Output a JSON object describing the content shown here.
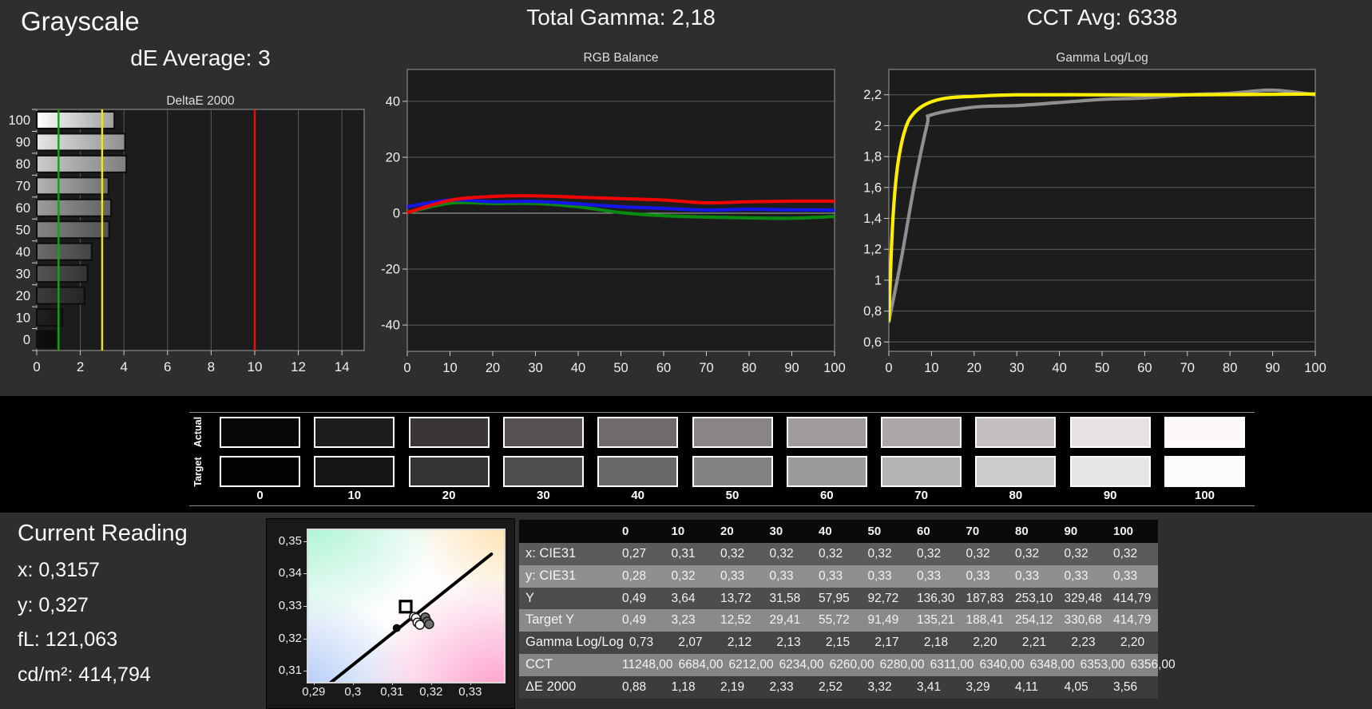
{
  "current_reading": {
    "title": "Current Reading",
    "lines": [
      "x: 0,3157",
      "y: 0,327",
      "fL: 121,063",
      "cd/m²: 414,794"
    ]
  },
  "swatches": {
    "row_labels": [
      "Actual",
      "Target"
    ],
    "levels": [
      "0",
      "10",
      "20",
      "30",
      "40",
      "50",
      "60",
      "70",
      "80",
      "90",
      "100"
    ],
    "actual_colors": [
      "#070709",
      "#1d1b1d",
      "#3a3538",
      "#575153",
      "#716a6c",
      "#8b8487",
      "#a19a9d",
      "#aea7aa",
      "#c6bfc2",
      "#e7e1e4",
      "#fdf9fa"
    ],
    "target_colors": [
      "#020202",
      "#161616",
      "#343434",
      "#4f4f4f",
      "#696969",
      "#838383",
      "#9b9b9b",
      "#b3b3b3",
      "#cccccc",
      "#e5e5e5",
      "#fbfbfb"
    ]
  },
  "table": {
    "columns": [
      "0",
      "10",
      "20",
      "30",
      "40",
      "50",
      "60",
      "70",
      "80",
      "90",
      "100"
    ],
    "rows": [
      {
        "label": "x: CIE31",
        "bg": "#5b5b5b",
        "values": [
          "0,27",
          "0,31",
          "0,32",
          "0,32",
          "0,32",
          "0,32",
          "0,32",
          "0,32",
          "0,32",
          "0,32",
          "0,32"
        ]
      },
      {
        "label": "y: CIE31",
        "bg": "#8f8f8f",
        "values": [
          "0,28",
          "0,32",
          "0,33",
          "0,33",
          "0,33",
          "0,33",
          "0,33",
          "0,33",
          "0,33",
          "0,33",
          "0,33"
        ]
      },
      {
        "label": "Y",
        "bg": "#4d4d4d",
        "values": [
          "0,49",
          "3,64",
          "13,72",
          "31,58",
          "57,95",
          "92,72",
          "136,30",
          "187,83",
          "253,10",
          "329,48",
          "414,79"
        ]
      },
      {
        "label": "Target Y",
        "bg": "#8a8a8a",
        "values": [
          "0,49",
          "3,23",
          "12,52",
          "29,41",
          "55,72",
          "91,49",
          "135,21",
          "188,41",
          "254,12",
          "330,68",
          "414,79"
        ]
      },
      {
        "label": "Gamma Log/Log",
        "bg": "#454545",
        "values": [
          "0,73",
          "2,07",
          "2,12",
          "2,13",
          "2,15",
          "2,17",
          "2,18",
          "2,20",
          "2,21",
          "2,23",
          "2,20"
        ]
      },
      {
        "label": "CCT",
        "bg": "#858585",
        "values": [
          "11248,00",
          "6684,00",
          "6212,00",
          "6234,00",
          "6260,00",
          "6280,00",
          "6311,00",
          "6340,00",
          "6348,00",
          "6353,00",
          "6356,00"
        ]
      },
      {
        "label": "ΔE 2000",
        "bg": "#3c3c3c",
        "values": [
          "0,88",
          "1,18",
          "2,19",
          "2,33",
          "2,52",
          "3,32",
          "3,41",
          "3,29",
          "4,11",
          "4,05",
          "3,56"
        ]
      }
    ]
  },
  "chart_data": [
    {
      "id": "deltae-2000",
      "type": "bar",
      "orientation": "horizontal",
      "heading": "Grayscale",
      "subtitle": "dE Average: 3",
      "title": "DeltaE 2000",
      "categories": [
        0,
        10,
        20,
        30,
        40,
        50,
        60,
        70,
        80,
        90,
        100
      ],
      "values": [
        0.88,
        1.18,
        2.19,
        2.33,
        2.52,
        3.32,
        3.41,
        3.29,
        4.11,
        4.05,
        3.56
      ],
      "bar_shades": [
        "#101010",
        "#222222",
        "#3c3c3c",
        "#545454",
        "#6c6c6c",
        "#848484",
        "#9c9c9c",
        "#b4b4b4",
        "#cccccc",
        "#e6e6e6",
        "#ffffff"
      ],
      "xlim": [
        0,
        15.02
      ],
      "xticks": [
        0,
        2,
        4,
        6,
        8,
        10,
        12,
        14
      ],
      "ref_lines": [
        {
          "x": 1,
          "color": "#17a017",
          "name": "green-target-line"
        },
        {
          "x": 3,
          "color": "#f2e60e",
          "name": "yellow-warning-line"
        },
        {
          "x": 10,
          "color": "#f40d0d",
          "name": "red-limit-line"
        }
      ],
      "display_order": "100-at-top",
      "grid": true,
      "legend": "none"
    },
    {
      "id": "rgb-balance",
      "type": "line",
      "heading": "Total Gamma: 2,18",
      "title": "RGB Balance",
      "x": [
        0,
        10,
        20,
        30,
        40,
        50,
        60,
        70,
        80,
        90,
        100
      ],
      "series": [
        {
          "name": "green",
          "color": "#0a8a10",
          "values": [
            0.2,
            3.6,
            3.5,
            3.5,
            2.3,
            0.2,
            -0.9,
            -1.4,
            -1.7,
            -1.8,
            -1.2
          ]
        },
        {
          "name": "blue",
          "color": "#1515e8",
          "values": [
            2.3,
            4.7,
            4.1,
            4.2,
            3.3,
            2.3,
            1.7,
            1.1,
            1.4,
            1.2,
            1.1
          ]
        },
        {
          "name": "red",
          "color": "#ee0505",
          "values": [
            0.2,
            4.6,
            6.0,
            6.2,
            5.7,
            5.2,
            4.7,
            3.7,
            4.1,
            4.3,
            4.3
          ]
        }
      ],
      "ylim": [
        -49.4,
        51.4
      ],
      "yticks": [
        40,
        20,
        0,
        -20,
        -40
      ],
      "xticks": [
        0,
        10,
        20,
        30,
        40,
        50,
        60,
        70,
        80,
        90,
        100
      ],
      "zero_line_bright": true,
      "grid": true,
      "legend": "none"
    },
    {
      "id": "gamma-log-log",
      "type": "line",
      "heading": "CCT Avg: 6338",
      "title": "Gamma Log/Log",
      "series": [
        {
          "name": "measured-gamma",
          "color": "#8f8f8f",
          "points": [
            [
              0,
              0.73
            ],
            [
              3,
              1.15
            ],
            [
              6,
              1.62
            ],
            [
              9,
              2.01
            ],
            [
              10,
              2.07
            ],
            [
              20,
              2.12
            ],
            [
              30,
              2.13
            ],
            [
              40,
              2.15
            ],
            [
              50,
              2.17
            ],
            [
              60,
              2.18
            ],
            [
              70,
              2.2
            ],
            [
              80,
              2.21
            ],
            [
              90,
              2.23
            ],
            [
              100,
              2.2
            ]
          ]
        },
        {
          "name": "target-gamma",
          "color": "#ffee00",
          "points": [
            [
              0,
              0.74
            ],
            [
              0.6,
              1.2
            ],
            [
              1.2,
              1.5
            ],
            [
              2,
              1.73
            ],
            [
              3,
              1.89
            ],
            [
              4,
              1.99
            ],
            [
              5,
              2.05
            ],
            [
              7,
              2.11
            ],
            [
              10,
              2.155
            ],
            [
              14,
              2.18
            ],
            [
              20,
              2.19
            ],
            [
              30,
              2.2
            ],
            [
              50,
              2.2
            ],
            [
              70,
              2.2
            ],
            [
              100,
              2.205
            ]
          ]
        }
      ],
      "ylim": [
        0.54,
        2.364
      ],
      "ytick_values": [
        0.6,
        0.8,
        1,
        1.2,
        1.4,
        1.6,
        1.8,
        2,
        2.2
      ],
      "ytick_labels": [
        "0,6",
        "0,8",
        "1",
        "1,2",
        "1,4",
        "1,6",
        "1,8",
        "2",
        "2,2"
      ],
      "xticks": [
        0,
        10,
        20,
        30,
        40,
        50,
        60,
        70,
        80,
        90,
        100
      ],
      "grid": true,
      "legend": "none"
    },
    {
      "id": "cie-chromaticity",
      "type": "scatter",
      "xlim": [
        0.2882,
        0.3382
      ],
      "ylim": [
        0.3071,
        0.3539
      ],
      "xtick_values": [
        0.29,
        0.3,
        0.31,
        0.32,
        0.33
      ],
      "xtick_labels": [
        "0,29",
        "0,3",
        "0,31",
        "0,32",
        "0,33"
      ],
      "ytick_values": [
        0.35,
        0.34,
        0.33,
        0.32,
        0.31
      ],
      "ytick_labels": [
        "0,35",
        "0,34",
        "0,33",
        "0,32",
        "0,31"
      ],
      "locus_line": [
        [
          0.2925,
          0.3055
        ],
        [
          0.335,
          0.3465
        ]
      ],
      "target_square": [
        0.3131,
        0.3303
      ],
      "black_point": [
        0.3108,
        0.3237
      ],
      "white_points": [
        [
          0.3152,
          0.3272
        ],
        [
          0.3157,
          0.3268
        ],
        [
          0.3161,
          0.3254
        ],
        [
          0.3167,
          0.3247
        ]
      ],
      "gray_points": [
        [
          0.3181,
          0.327
        ],
        [
          0.3186,
          0.3257
        ],
        [
          0.3191,
          0.3249
        ]
      ]
    }
  ],
  "colors": {
    "page_bg": "#2e2e2e",
    "band_bg": "#000000",
    "plot_bg": "#1c1c1c",
    "grid_line": "#5a5a5a",
    "axis_text": "#f0f0f0",
    "table_header_bg": "#0a0a0a"
  }
}
